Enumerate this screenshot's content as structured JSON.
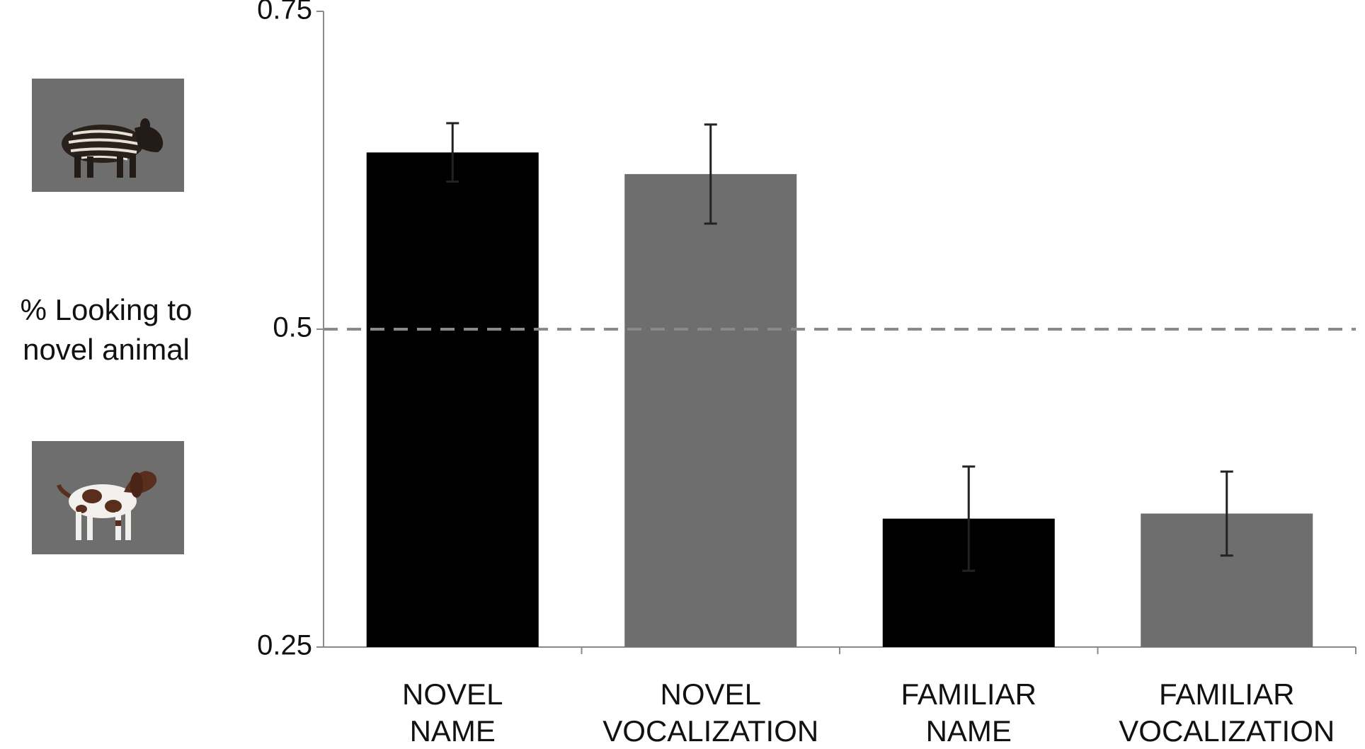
{
  "chart_data": {
    "type": "bar",
    "ylabel": [
      "% Looking to",
      "novel animal"
    ],
    "categories": [
      [
        "NOVEL",
        "NAME"
      ],
      [
        "NOVEL",
        "VOCALIZATION"
      ],
      [
        "FAMILIAR",
        "NAME"
      ],
      [
        "FAMILIAR",
        "VOCALIZATION"
      ]
    ],
    "values": [
      0.639,
      0.622,
      0.351,
      0.355
    ],
    "errors": [
      0.023,
      0.039,
      0.041,
      0.033
    ],
    "bar_colors": [
      "#000000",
      "#6e6e6e",
      "#000000",
      "#6e6e6e"
    ],
    "ylim": [
      0.25,
      0.75
    ],
    "yticks": [
      0.25,
      0.5,
      0.75
    ],
    "ytick_labels": [
      "0.25",
      "0.5",
      "0.75"
    ],
    "reference_line": {
      "y": 0.5,
      "style": "dashed",
      "color": "#8a8a8a"
    },
    "grid": false,
    "legend": "none",
    "side_images": {
      "top": "tapir-calf-icon",
      "bottom": "spaniel-dog-icon",
      "background": "#6e6e6e"
    }
  }
}
